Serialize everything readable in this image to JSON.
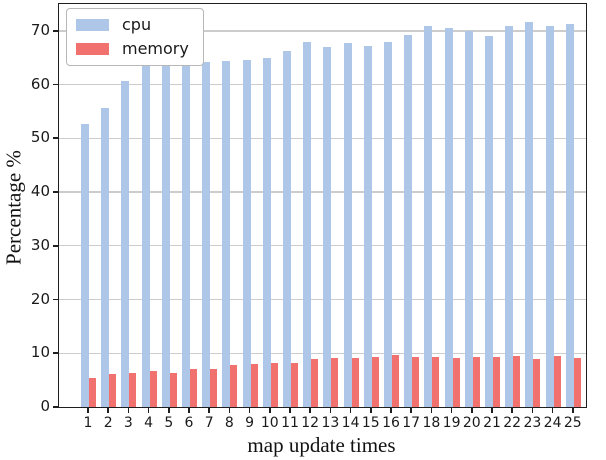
{
  "chart_data": {
    "type": "bar",
    "title": "",
    "xlabel": "map update times",
    "ylabel": "Percentage %",
    "categories": [
      "1",
      "2",
      "3",
      "4",
      "5",
      "6",
      "7",
      "8",
      "9",
      "10",
      "11",
      "12",
      "13",
      "14",
      "15",
      "16",
      "17",
      "18",
      "19",
      "20",
      "21",
      "22",
      "23",
      "24",
      "25"
    ],
    "series": [
      {
        "name": "cpu",
        "color": "#aec7e8",
        "values": [
          52.7,
          55.7,
          60.7,
          63.4,
          63.8,
          64.5,
          64.2,
          64.4,
          64.6,
          65.0,
          66.3,
          68.0,
          67.0,
          67.8,
          67.1,
          68.0,
          69.2,
          71.0,
          70.6,
          70.0,
          69.0,
          70.9,
          71.6,
          70.9,
          71.3
        ]
      },
      {
        "name": "memory",
        "color": "#f0716d",
        "values": [
          5.4,
          6.2,
          6.4,
          6.7,
          6.4,
          7.1,
          7.1,
          7.8,
          8.0,
          8.1,
          8.2,
          8.9,
          9.1,
          9.2,
          9.3,
          9.6,
          9.4,
          9.4,
          9.2,
          9.4,
          9.3,
          9.5,
          9.0,
          9.5,
          9.1
        ]
      }
    ],
    "ylim": [
      0,
      75
    ],
    "yticks": [
      0,
      10,
      20,
      30,
      40,
      50,
      60,
      70
    ],
    "grid": "horizontal",
    "legend_position": "upper-left",
    "colors": {
      "grid": "#cccccc",
      "spine": "#1f1f1f",
      "background": "#ffffff"
    }
  }
}
